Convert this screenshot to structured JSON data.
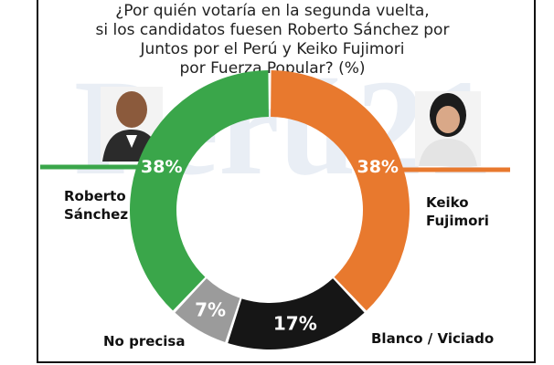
{
  "chart_data": {
    "type": "pie",
    "title": "¿Por quién votaría en la segunda vuelta, si los candidatos fuesen Roberto Sánchez por Juntos por el Perú y Keiko Fujimori por Fuerza Popular? (%)",
    "title_lines": [
      "¿Por quién votaría en la segunda vuelta,",
      "si los candidatos fuesen Roberto Sánchez por",
      "Juntos por el Perú y Keiko Fujimori",
      "por Fuerza Popular?  (%)"
    ],
    "variant": "donut",
    "slices": [
      {
        "name": "Keiko Fujimori",
        "name_lines": [
          "Keiko",
          "Fujimori"
        ],
        "value": 38,
        "label": "38%",
        "color": "#e8792e"
      },
      {
        "name": "Blanco / Viciado",
        "name_lines": [
          "Blanco / Viciado"
        ],
        "value": 17,
        "label": "17%",
        "color": "#161616"
      },
      {
        "name": "No precisa",
        "name_lines": [
          "No precisa"
        ],
        "value": 7,
        "label": "7%",
        "color": "#9b9b9b"
      },
      {
        "name": "Roberto Sánchez",
        "name_lines": [
          "Roberto",
          "Sánchez"
        ],
        "value": 38,
        "label": "38%",
        "color": "#3aa64a"
      }
    ]
  },
  "watermark": {
    "text": "Perú21",
    "color": "#e9eef5"
  },
  "accent_lines": {
    "left": "#3aa64a",
    "right": "#e8792e"
  },
  "photos": [
    {
      "name": "Roberto Sánchez photo",
      "icon": "person-photo-icon"
    },
    {
      "name": "Keiko Fujimori photo",
      "icon": "person-photo-icon"
    }
  ]
}
